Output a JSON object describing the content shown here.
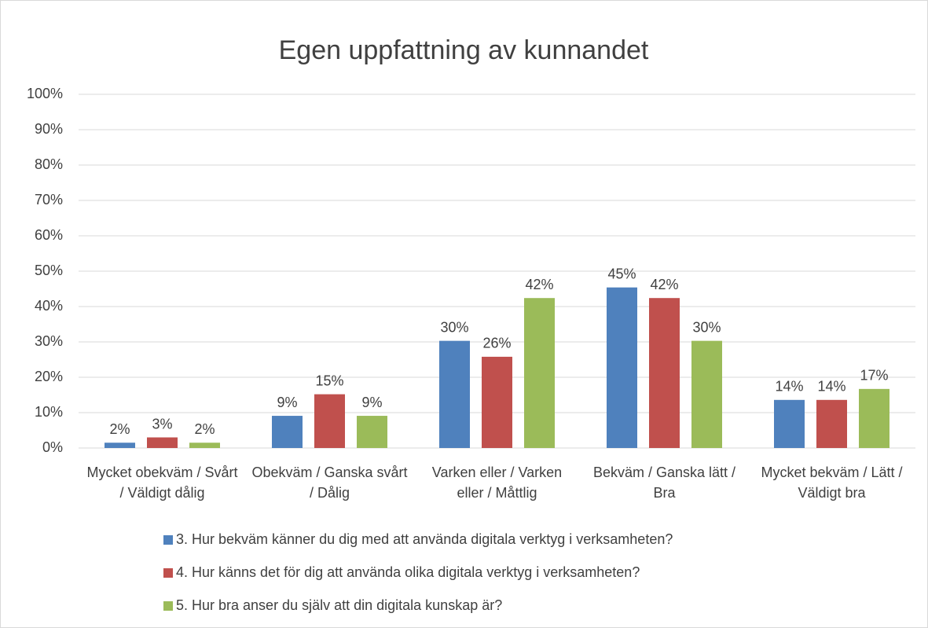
{
  "chart_data": {
    "type": "bar",
    "title": "Egen uppfattning av kunnandet",
    "categories": [
      "Mycket obekväm / Svårt / Väldigt dålig",
      "Obekväm / Ganska svårt / Dålig",
      "Varken eller / Varken eller / Måttlig",
      "Bekväm / Ganska lätt / Bra",
      "Mycket bekväm / Lätt / Väldigt bra"
    ],
    "series": [
      {
        "name": "3. Hur bekväm känner du dig med att använda digitala verktyg i verksamheten?",
        "color": "#4f81bd",
        "values": [
          1.5,
          9.1,
          30.3,
          45.4,
          13.6
        ],
        "value_labels": [
          "2%",
          "9%",
          "30%",
          "45%",
          "14%"
        ]
      },
      {
        "name": "4. Hur känns det för dig att använda olika digitala verktyg i verksamheten?",
        "color": "#c0504d",
        "values": [
          3,
          15.2,
          25.8,
          42.4,
          13.6
        ],
        "value_labels": [
          "3%",
          "15%",
          "26%",
          "42%",
          "14%"
        ]
      },
      {
        "name": "5. Hur bra anser du själv att din digitala kunskap är?",
        "color": "#9bbb59",
        "values": [
          1.5,
          9.1,
          42.4,
          30.3,
          16.7
        ],
        "value_labels": [
          "2%",
          "9%",
          "42%",
          "30%",
          "17%"
        ]
      }
    ],
    "ylim": [
      0,
      100
    ],
    "yticks": [
      {
        "value": 0,
        "label": "0%"
      },
      {
        "value": 10,
        "label": "10%"
      },
      {
        "value": 20,
        "label": "20%"
      },
      {
        "value": 30,
        "label": "30%"
      },
      {
        "value": 40,
        "label": "40%"
      },
      {
        "value": 50,
        "label": "50%"
      },
      {
        "value": 60,
        "label": "60%"
      },
      {
        "value": 70,
        "label": "70%"
      },
      {
        "value": 80,
        "label": "80%"
      },
      {
        "value": 90,
        "label": "90%"
      },
      {
        "value": 100,
        "label": "100%"
      }
    ],
    "grid": true,
    "legend": "bottom"
  }
}
